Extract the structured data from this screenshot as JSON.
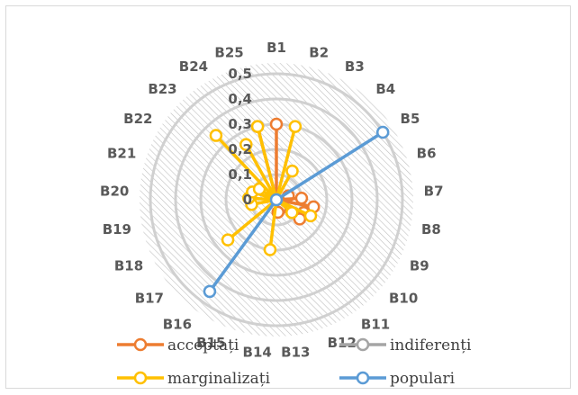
{
  "chart_data": {
    "type": "radar",
    "title": "",
    "categories": [
      "B1",
      "B2",
      "B3",
      "B4",
      "B5",
      "B6",
      "B7",
      "B8",
      "B9",
      "B10",
      "B11",
      "B12",
      "B13",
      "B14",
      "B15",
      "B16",
      "B17",
      "B18",
      "B19",
      "B20",
      "B21",
      "B22",
      "B23",
      "B24",
      "B25"
    ],
    "radial_ticks": [
      "0",
      "0,1",
      "0,2",
      "0,3",
      "0,4",
      "0,5"
    ],
    "rmax": 0.5,
    "grid": true,
    "legend_position": "bottom",
    "series": [
      {
        "name": "acceptați",
        "color": "#ED7D31",
        "points": [
          {
            "cat": "B1",
            "value": 0.3
          },
          {
            "cat": "B6",
            "value": 0.05
          },
          {
            "cat": "B7",
            "value": 0.1
          },
          {
            "cat": "B8",
            "value": 0.15
          },
          {
            "cat": "B9",
            "value": 0.12
          },
          {
            "cat": "B10",
            "value": 0.12
          },
          {
            "cat": "B12",
            "value": 0.04
          },
          {
            "cat": "B13",
            "value": 0.05
          },
          {
            "cat": "B25",
            "value": 0.3
          }
        ]
      },
      {
        "name": "indiferenți",
        "color": "#A5A5A5",
        "points": []
      },
      {
        "name": "marginalizați",
        "color": "#FFC000",
        "points": [
          {
            "cat": "B2",
            "value": 0.3
          },
          {
            "cat": "B3",
            "value": 0.13
          },
          {
            "cat": "B9",
            "value": 0.15
          },
          {
            "cat": "B10",
            "value": 0.08
          },
          {
            "cat": "B14",
            "value": 0.2
          },
          {
            "cat": "B17",
            "value": 0.25
          },
          {
            "cat": "B19",
            "value": 0.1
          },
          {
            "cat": "B20",
            "value": 0.11
          },
          {
            "cat": "B21",
            "value": 0.1
          },
          {
            "cat": "B22",
            "value": 0.08
          },
          {
            "cat": "B23",
            "value": 0.35
          },
          {
            "cat": "B24",
            "value": 0.25
          },
          {
            "cat": "B25",
            "value": 0.3
          }
        ]
      },
      {
        "name": "populari",
        "color": "#5B9BD5",
        "points": [
          {
            "cat": "B5",
            "value": 0.5
          },
          {
            "cat": "B16",
            "value": 0.45
          }
        ]
      }
    ]
  }
}
